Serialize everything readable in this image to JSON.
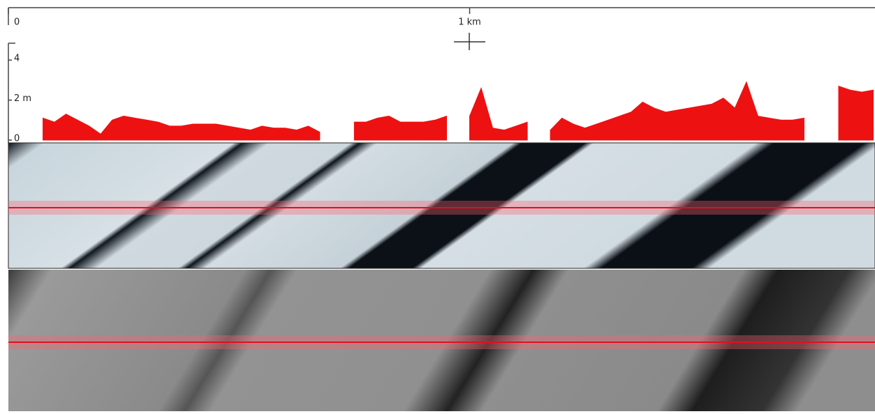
{
  "chart_data": {
    "type": "area",
    "x": [
      0,
      0.025,
      0.05,
      0.075,
      0.1,
      0.125,
      0.15,
      0.175,
      0.2,
      0.225,
      0.25,
      0.275,
      0.3,
      0.325,
      0.35,
      0.375,
      0.4,
      0.425,
      0.45,
      0.475,
      0.5,
      0.525,
      0.55,
      0.575,
      0.6,
      0.625,
      0.65,
      0.675,
      0.7,
      0.725,
      0.75,
      0.775,
      0.8,
      0.825,
      0.85,
      0.875,
      0.9,
      0.925,
      0.95,
      0.975,
      1,
      1.025,
      1.05,
      1.075,
      1.1,
      1.125,
      1.15,
      1.175,
      1.2,
      1.225,
      1.25,
      1.275,
      1.3,
      1.325,
      1.35,
      1.375,
      1.4,
      1.425,
      1.45,
      1.475,
      1.5,
      1.525,
      1.55,
      1.575,
      1.6,
      1.625,
      1.65,
      1.675,
      1.7,
      1.725,
      1.75,
      1.775,
      1.8,
      1.825,
      1.85,
      1.875
    ],
    "values": [
      null,
      null,
      null,
      1.1,
      0.9,
      1.3,
      1.0,
      0.7,
      0.3,
      1.0,
      1.2,
      1.1,
      1.0,
      0.9,
      0.7,
      0.7,
      0.8,
      0.8,
      0.8,
      0.7,
      0.6,
      0.5,
      0.7,
      0.6,
      0.6,
      0.5,
      0.7,
      0.4,
      null,
      null,
      0.9,
      0.9,
      1.1,
      1.2,
      0.9,
      0.9,
      0.9,
      1.0,
      1.2,
      null,
      1.2,
      2.6,
      0.6,
      0.5,
      0.7,
      0.9,
      null,
      0.5,
      1.1,
      0.8,
      0.6,
      0.8,
      1.0,
      1.2,
      1.4,
      1.9,
      1.6,
      1.4,
      1.5,
      1.6,
      1.7,
      1.8,
      2.1,
      1.6,
      2.9,
      1.2,
      1.1,
      1.0,
      1.0,
      1.1,
      null,
      null,
      2.7,
      2.5,
      2.4,
      2.5
    ],
    "color": "#ee1111",
    "xlim": [
      0,
      1.8788
    ],
    "xticks": [
      0,
      {
        "value": 1,
        "label": "1 km"
      }
    ],
    "ylim": [
      0,
      4.6
    ],
    "yticks": [
      0,
      {
        "value": 2,
        "label": "2 m"
      },
      4
    ]
  }
}
